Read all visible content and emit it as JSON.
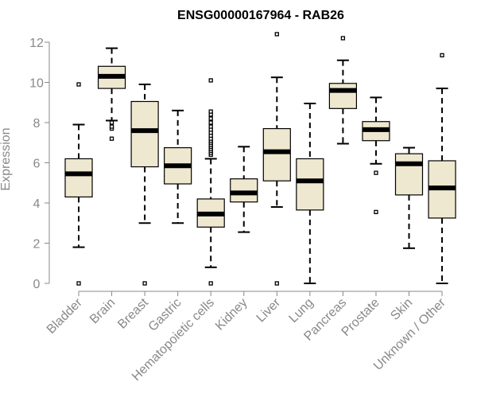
{
  "chart_data": {
    "type": "boxplot",
    "title": "ENSG00000167964 - RAB26",
    "xlabel": "",
    "ylabel": "Expression",
    "ylim": [
      0,
      12
    ],
    "yticks": [
      0,
      2,
      4,
      6,
      8,
      10,
      12
    ],
    "categories": [
      "Bladder",
      "Brain",
      "Breast",
      "Gastric",
      "Hematopoietic cells",
      "Kidney",
      "Liver",
      "Lung",
      "Pancreas",
      "Prostate",
      "Skin",
      "Unknown / Other"
    ],
    "boxes": [
      {
        "name": "Bladder",
        "whisker_low": 1.8,
        "q1": 4.3,
        "median": 5.45,
        "q3": 6.2,
        "whisker_high": 7.9,
        "outliers": [
          0.0,
          9.9
        ]
      },
      {
        "name": "Brain",
        "whisker_low": 8.1,
        "q1": 9.7,
        "median": 10.3,
        "q3": 10.8,
        "whisker_high": 11.7,
        "outliers": [
          7.2,
          7.7,
          7.8,
          8.0
        ]
      },
      {
        "name": "Breast",
        "whisker_low": 3.0,
        "q1": 5.8,
        "median": 7.6,
        "q3": 9.05,
        "whisker_high": 9.9,
        "outliers": [
          0.0
        ]
      },
      {
        "name": "Gastric",
        "whisker_low": 3.0,
        "q1": 4.95,
        "median": 5.85,
        "q3": 6.75,
        "whisker_high": 8.6,
        "outliers": []
      },
      {
        "name": "Hematopoietic cells",
        "whisker_low": 0.8,
        "q1": 2.8,
        "median": 3.45,
        "q3": 4.2,
        "whisker_high": 6.2,
        "outliers": [
          0.0,
          6.4,
          6.5,
          6.6,
          6.7,
          6.8,
          6.9,
          7.0,
          7.1,
          7.2,
          7.35,
          7.5,
          7.65,
          7.8,
          8.0,
          8.2,
          8.4,
          8.55,
          10.1
        ]
      },
      {
        "name": "Kidney",
        "whisker_low": 2.55,
        "q1": 4.05,
        "median": 4.5,
        "q3": 5.2,
        "whisker_high": 6.8,
        "outliers": []
      },
      {
        "name": "Liver",
        "whisker_low": 3.8,
        "q1": 5.1,
        "median": 6.55,
        "q3": 7.7,
        "whisker_high": 10.25,
        "outliers": [
          0.0,
          12.4
        ]
      },
      {
        "name": "Lung",
        "whisker_low": 0.0,
        "q1": 3.65,
        "median": 5.1,
        "q3": 6.2,
        "whisker_high": 8.95,
        "outliers": []
      },
      {
        "name": "Pancreas",
        "whisker_low": 6.95,
        "q1": 8.7,
        "median": 9.6,
        "q3": 9.95,
        "whisker_high": 11.1,
        "outliers": [
          12.2
        ]
      },
      {
        "name": "Prostate",
        "whisker_low": 5.95,
        "q1": 7.1,
        "median": 7.65,
        "q3": 8.05,
        "whisker_high": 9.25,
        "outliers": [
          3.55,
          5.5
        ]
      },
      {
        "name": "Skin",
        "whisker_low": 1.75,
        "q1": 4.4,
        "median": 5.95,
        "q3": 6.45,
        "whisker_high": 6.75,
        "outliers": []
      },
      {
        "name": "Unknown / Other",
        "whisker_low": 0.0,
        "q1": 3.25,
        "median": 4.75,
        "q3": 6.1,
        "whisker_high": 9.7,
        "outliers": [
          11.35
        ]
      }
    ],
    "colors": {
      "box_fill": "#efe8d0",
      "box_stroke": "#000000",
      "median": "#000000",
      "axis": "#888888",
      "tick_text": "#888888",
      "title": "#000000"
    },
    "grid": false,
    "legend": "none"
  }
}
